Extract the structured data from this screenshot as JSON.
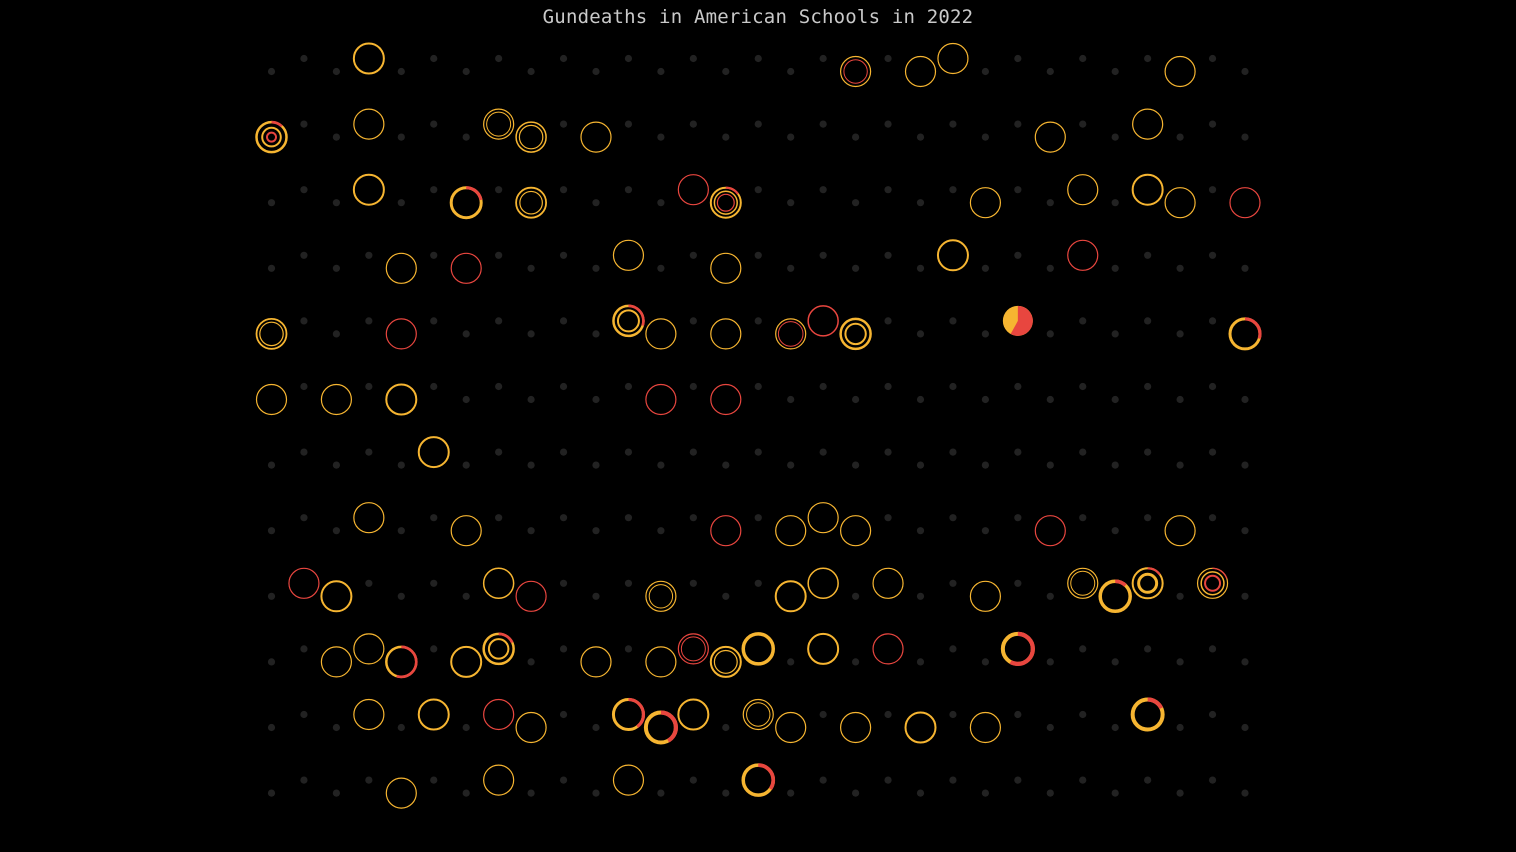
{
  "chart_data": {
    "type": "scatter",
    "title": "Gundeaths in American Schools in 2022",
    "grid": "off",
    "legend": "none",
    "colors": {
      "background": "#000000",
      "title": "#c9c9c9",
      "empty_day_dot": "#222222",
      "yellow": "#f6b531",
      "red": "#e8463f"
    },
    "rows": 12,
    "columns": 31,
    "marks": [
      {
        "row": 1,
        "col": 4,
        "rings": [
          {
            "c": "y",
            "w": 2
          }
        ]
      },
      {
        "row": 1,
        "col": 19,
        "rings": [
          {
            "c": "y",
            "w": 1.2
          },
          {
            "c": "r",
            "w": 1,
            "r": 0.78
          }
        ]
      },
      {
        "row": 1,
        "col": 21,
        "rings": [
          {
            "c": "y",
            "w": 1.2
          }
        ]
      },
      {
        "row": 1,
        "col": 22,
        "rings": [
          {
            "c": "y",
            "w": 1.2
          }
        ]
      },
      {
        "row": 1,
        "col": 29,
        "rings": [
          {
            "c": "y",
            "w": 1.2
          }
        ]
      },
      {
        "row": 2,
        "col": 1,
        "rings": [
          {
            "c": "y",
            "w": 2.5
          },
          {
            "c": "y",
            "w": 2,
            "r": 0.62
          },
          {
            "c": "r",
            "w": 2,
            "r": 0.3
          }
        ],
        "red_frac": 0.12
      },
      {
        "row": 2,
        "col": 4,
        "rings": [
          {
            "c": "y",
            "w": 1.2
          }
        ]
      },
      {
        "row": 2,
        "col": 8,
        "rings": [
          {
            "c": "y",
            "w": 1.2
          },
          {
            "c": "y",
            "w": 1,
            "r": 0.8
          }
        ]
      },
      {
        "row": 2,
        "col": 9,
        "rings": [
          {
            "c": "y",
            "w": 1.5
          },
          {
            "c": "y",
            "w": 1.2,
            "r": 0.78
          }
        ]
      },
      {
        "row": 2,
        "col": 11,
        "rings": [
          {
            "c": "y",
            "w": 1.2
          }
        ]
      },
      {
        "row": 2,
        "col": 25,
        "rings": [
          {
            "c": "y",
            "w": 1.2
          }
        ]
      },
      {
        "row": 2,
        "col": 28,
        "rings": [
          {
            "c": "y",
            "w": 1.2
          }
        ]
      },
      {
        "row": 3,
        "col": 4,
        "rings": [
          {
            "c": "y",
            "w": 2
          }
        ]
      },
      {
        "row": 3,
        "col": 7,
        "rings": [
          {
            "c": "y",
            "w": 3
          }
        ],
        "red_frac": 0.22
      },
      {
        "row": 3,
        "col": 9,
        "rings": [
          {
            "c": "y",
            "w": 1.8
          },
          {
            "c": "y",
            "w": 1.2,
            "r": 0.75
          }
        ]
      },
      {
        "row": 3,
        "col": 14,
        "rings": [
          {
            "c": "r",
            "w": 1.2
          }
        ]
      },
      {
        "row": 3,
        "col": 15,
        "rings": [
          {
            "c": "y",
            "w": 2
          },
          {
            "c": "y",
            "w": 1.5,
            "r": 0.76
          },
          {
            "c": "r",
            "w": 1.2,
            "r": 0.56
          }
        ],
        "red_frac": 0.15
      },
      {
        "row": 3,
        "col": 23,
        "rings": [
          {
            "c": "y",
            "w": 1.2
          }
        ]
      },
      {
        "row": 3,
        "col": 26,
        "rings": [
          {
            "c": "y",
            "w": 1.2
          }
        ]
      },
      {
        "row": 3,
        "col": 28,
        "rings": [
          {
            "c": "y",
            "w": 2
          }
        ]
      },
      {
        "row": 3,
        "col": 29,
        "rings": [
          {
            "c": "y",
            "w": 1.2
          }
        ]
      },
      {
        "row": 3,
        "col": 31,
        "rings": [
          {
            "c": "r",
            "w": 1.2
          }
        ]
      },
      {
        "row": 4,
        "col": 5,
        "rings": [
          {
            "c": "y",
            "w": 1.2
          }
        ]
      },
      {
        "row": 4,
        "col": 7,
        "rings": [
          {
            "c": "r",
            "w": 1.2
          }
        ]
      },
      {
        "row": 4,
        "col": 12,
        "rings": [
          {
            "c": "y",
            "w": 1.2
          }
        ]
      },
      {
        "row": 4,
        "col": 15,
        "rings": [
          {
            "c": "y",
            "w": 1.2
          }
        ]
      },
      {
        "row": 4,
        "col": 22,
        "rings": [
          {
            "c": "y",
            "w": 2
          }
        ]
      },
      {
        "row": 4,
        "col": 26,
        "rings": [
          {
            "c": "r",
            "w": 1.2
          }
        ]
      },
      {
        "row": 5,
        "col": 1,
        "rings": [
          {
            "c": "y",
            "w": 1.8
          },
          {
            "c": "y",
            "w": 1.2,
            "r": 0.78
          }
        ]
      },
      {
        "row": 5,
        "col": 5,
        "rings": [
          {
            "c": "r",
            "w": 1.2
          }
        ]
      },
      {
        "row": 5,
        "col": 12,
        "rings": [
          {
            "c": "y",
            "w": 2.5
          },
          {
            "c": "y",
            "w": 2,
            "r": 0.7
          }
        ],
        "red_frac": 0.3
      },
      {
        "row": 5,
        "col": 13,
        "rings": [
          {
            "c": "y",
            "w": 1.2
          }
        ]
      },
      {
        "row": 5,
        "col": 15,
        "rings": [
          {
            "c": "y",
            "w": 1.2
          }
        ]
      },
      {
        "row": 5,
        "col": 17,
        "rings": [
          {
            "c": "y",
            "w": 1.2
          },
          {
            "c": "r",
            "w": 1,
            "r": 0.82
          }
        ]
      },
      {
        "row": 5,
        "col": 18,
        "rings": [
          {
            "c": "r",
            "w": 1.5
          }
        ]
      },
      {
        "row": 5,
        "col": 19,
        "rings": [
          {
            "c": "y",
            "w": 2.5
          },
          {
            "c": "y",
            "w": 2,
            "r": 0.68
          }
        ]
      },
      {
        "row": 5,
        "col": 24,
        "filled": true,
        "red_frac": 0.58
      },
      {
        "row": 5,
        "col": 31,
        "rings": [
          {
            "c": "y",
            "w": 3
          }
        ],
        "red_frac": 0.3
      },
      {
        "row": 6,
        "col": 1,
        "rings": [
          {
            "c": "y",
            "w": 1.2
          }
        ]
      },
      {
        "row": 6,
        "col": 3,
        "rings": [
          {
            "c": "y",
            "w": 1.2
          }
        ]
      },
      {
        "row": 6,
        "col": 5,
        "rings": [
          {
            "c": "y",
            "w": 2
          }
        ]
      },
      {
        "row": 6,
        "col": 13,
        "rings": [
          {
            "c": "r",
            "w": 1.2
          }
        ]
      },
      {
        "row": 6,
        "col": 15,
        "rings": [
          {
            "c": "r",
            "w": 1.2
          }
        ]
      },
      {
        "row": 7,
        "col": 6,
        "rings": [
          {
            "c": "y",
            "w": 2
          }
        ]
      },
      {
        "row": 8,
        "col": 4,
        "rings": [
          {
            "c": "y",
            "w": 1.2
          }
        ]
      },
      {
        "row": 8,
        "col": 7,
        "rings": [
          {
            "c": "y",
            "w": 1.2
          }
        ]
      },
      {
        "row": 8,
        "col": 15,
        "rings": [
          {
            "c": "r",
            "w": 1.2
          }
        ]
      },
      {
        "row": 8,
        "col": 17,
        "rings": [
          {
            "c": "y",
            "w": 1.2
          }
        ]
      },
      {
        "row": 8,
        "col": 18,
        "rings": [
          {
            "c": "y",
            "w": 1.2
          }
        ]
      },
      {
        "row": 8,
        "col": 19,
        "rings": [
          {
            "c": "y",
            "w": 1.2
          }
        ]
      },
      {
        "row": 8,
        "col": 25,
        "rings": [
          {
            "c": "r",
            "w": 1.2
          }
        ]
      },
      {
        "row": 8,
        "col": 29,
        "rings": [
          {
            "c": "y",
            "w": 1.2
          }
        ]
      },
      {
        "row": 9,
        "col": 2,
        "rings": [
          {
            "c": "r",
            "w": 1.2
          }
        ]
      },
      {
        "row": 9,
        "col": 3,
        "rings": [
          {
            "c": "y",
            "w": 2
          }
        ]
      },
      {
        "row": 9,
        "col": 8,
        "rings": [
          {
            "c": "y",
            "w": 1.5
          }
        ]
      },
      {
        "row": 9,
        "col": 9,
        "rings": [
          {
            "c": "r",
            "w": 1.2
          }
        ]
      },
      {
        "row": 9,
        "col": 13,
        "rings": [
          {
            "c": "y",
            "w": 1.2
          },
          {
            "c": "y",
            "w": 1,
            "r": 0.78
          }
        ]
      },
      {
        "row": 9,
        "col": 17,
        "rings": [
          {
            "c": "y",
            "w": 2
          }
        ]
      },
      {
        "row": 9,
        "col": 18,
        "rings": [
          {
            "c": "y",
            "w": 1.5
          }
        ]
      },
      {
        "row": 9,
        "col": 20,
        "rings": [
          {
            "c": "y",
            "w": 1.2
          }
        ]
      },
      {
        "row": 9,
        "col": 23,
        "rings": [
          {
            "c": "y",
            "w": 1.2
          }
        ]
      },
      {
        "row": 9,
        "col": 26,
        "rings": [
          {
            "c": "y",
            "w": 1.2
          },
          {
            "c": "y",
            "w": 1,
            "r": 0.8
          }
        ]
      },
      {
        "row": 9,
        "col": 27,
        "rings": [
          {
            "c": "y",
            "w": 3.5
          }
        ],
        "red_frac": 0.12
      },
      {
        "row": 9,
        "col": 28,
        "rings": [
          {
            "c": "y",
            "w": 2
          },
          {
            "c": "y",
            "w": 3,
            "r": 0.6
          }
        ],
        "red_frac": 0.15
      },
      {
        "row": 9,
        "col": 30,
        "rings": [
          {
            "c": "y",
            "w": 1.2
          },
          {
            "c": "y",
            "w": 1.5,
            "r": 0.76
          },
          {
            "c": "r",
            "w": 2,
            "r": 0.5
          }
        ],
        "red_frac": 0.2
      },
      {
        "row": 10,
        "col": 3,
        "rings": [
          {
            "c": "y",
            "w": 1.2
          }
        ]
      },
      {
        "row": 10,
        "col": 4,
        "rings": [
          {
            "c": "y",
            "w": 1.2
          }
        ]
      },
      {
        "row": 10,
        "col": 5,
        "rings": [
          {
            "c": "y",
            "w": 2.5
          }
        ],
        "red_frac": 0.55
      },
      {
        "row": 10,
        "col": 7,
        "rings": [
          {
            "c": "y",
            "w": 2
          }
        ]
      },
      {
        "row": 10,
        "col": 8,
        "rings": [
          {
            "c": "y",
            "w": 2.5
          },
          {
            "c": "y",
            "w": 2,
            "r": 0.65
          }
        ],
        "red_frac": 0.18
      },
      {
        "row": 10,
        "col": 11,
        "rings": [
          {
            "c": "y",
            "w": 1.2
          }
        ]
      },
      {
        "row": 10,
        "col": 13,
        "rings": [
          {
            "c": "y",
            "w": 1.2
          }
        ]
      },
      {
        "row": 10,
        "col": 14,
        "rings": [
          {
            "c": "r",
            "w": 1.2
          },
          {
            "c": "r",
            "w": 1,
            "r": 0.8
          }
        ]
      },
      {
        "row": 10,
        "col": 15,
        "rings": [
          {
            "c": "y",
            "w": 2
          },
          {
            "c": "y",
            "w": 1.2,
            "r": 0.76
          }
        ]
      },
      {
        "row": 10,
        "col": 16,
        "rings": [
          {
            "c": "y",
            "w": 3.5
          }
        ]
      },
      {
        "row": 10,
        "col": 18,
        "rings": [
          {
            "c": "y",
            "w": 2
          }
        ]
      },
      {
        "row": 10,
        "col": 20,
        "rings": [
          {
            "c": "r",
            "w": 1.2
          }
        ]
      },
      {
        "row": 10,
        "col": 24,
        "rings": [
          {
            "c": "y",
            "w": 4
          }
        ],
        "red_frac": 0.58
      },
      {
        "row": 11,
        "col": 4,
        "rings": [
          {
            "c": "y",
            "w": 1.2
          }
        ]
      },
      {
        "row": 11,
        "col": 6,
        "rings": [
          {
            "c": "y",
            "w": 2
          }
        ]
      },
      {
        "row": 11,
        "col": 8,
        "rings": [
          {
            "c": "r",
            "w": 1.2
          }
        ]
      },
      {
        "row": 11,
        "col": 9,
        "rings": [
          {
            "c": "y",
            "w": 1.2
          }
        ]
      },
      {
        "row": 11,
        "col": 12,
        "rings": [
          {
            "c": "y",
            "w": 3
          }
        ],
        "red_frac": 0.4
      },
      {
        "row": 11,
        "col": 13,
        "rings": [
          {
            "c": "y",
            "w": 4
          }
        ],
        "red_frac": 0.42
      },
      {
        "row": 11,
        "col": 14,
        "rings": [
          {
            "c": "y",
            "w": 2
          }
        ]
      },
      {
        "row": 11,
        "col": 16,
        "rings": [
          {
            "c": "y",
            "w": 1.2
          },
          {
            "c": "y",
            "w": 1,
            "r": 0.78
          }
        ]
      },
      {
        "row": 11,
        "col": 17,
        "rings": [
          {
            "c": "y",
            "w": 1.2
          }
        ]
      },
      {
        "row": 11,
        "col": 19,
        "rings": [
          {
            "c": "y",
            "w": 1.2
          }
        ]
      },
      {
        "row": 11,
        "col": 21,
        "rings": [
          {
            "c": "y",
            "w": 2
          }
        ]
      },
      {
        "row": 11,
        "col": 23,
        "rings": [
          {
            "c": "y",
            "w": 1.2
          }
        ]
      },
      {
        "row": 11,
        "col": 28,
        "rings": [
          {
            "c": "y",
            "w": 4
          }
        ],
        "red_frac": 0.18
      },
      {
        "row": 12,
        "col": 5,
        "rings": [
          {
            "c": "y",
            "w": 1.2
          }
        ]
      },
      {
        "row": 12,
        "col": 8,
        "rings": [
          {
            "c": "y",
            "w": 1.2
          }
        ]
      },
      {
        "row": 12,
        "col": 12,
        "rings": [
          {
            "c": "y",
            "w": 1.2
          }
        ]
      },
      {
        "row": 12,
        "col": 16,
        "rings": [
          {
            "c": "y",
            "w": 3.5
          }
        ],
        "red_frac": 0.35
      }
    ]
  }
}
